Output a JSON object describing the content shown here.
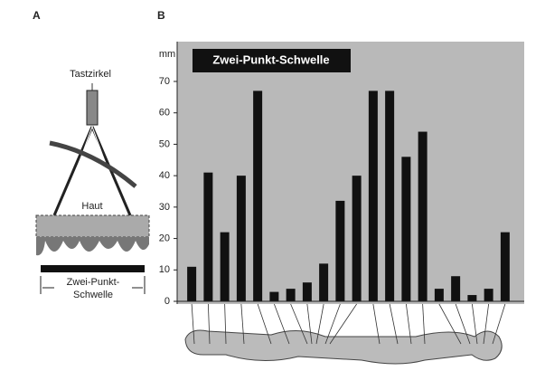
{
  "panel_labels": [
    "A",
    "B"
  ],
  "panel_a": {
    "instrument": "Tastzirkel",
    "skin": "Haut",
    "threshold_line1": "Zwei-Punkt-",
    "threshold_line2": "Schwelle"
  },
  "chart_data": {
    "type": "bar",
    "title": "Zwei-Punkt-Schwelle",
    "y_label": "mm",
    "categories": [
      null,
      null,
      null,
      null,
      null,
      null,
      null,
      null,
      null,
      null,
      null,
      null,
      null,
      null,
      null,
      null,
      null,
      null,
      null,
      null
    ],
    "values": [
      11,
      41,
      22,
      40,
      67,
      3,
      4,
      6,
      12,
      32,
      40,
      67,
      67,
      46,
      54,
      4,
      8,
      2,
      4,
      22
    ],
    "color": "#111111",
    "ylim": [
      0,
      70
    ],
    "yticks": [
      0,
      10,
      20,
      30,
      40,
      50,
      60,
      70
    ],
    "grid": false
  }
}
